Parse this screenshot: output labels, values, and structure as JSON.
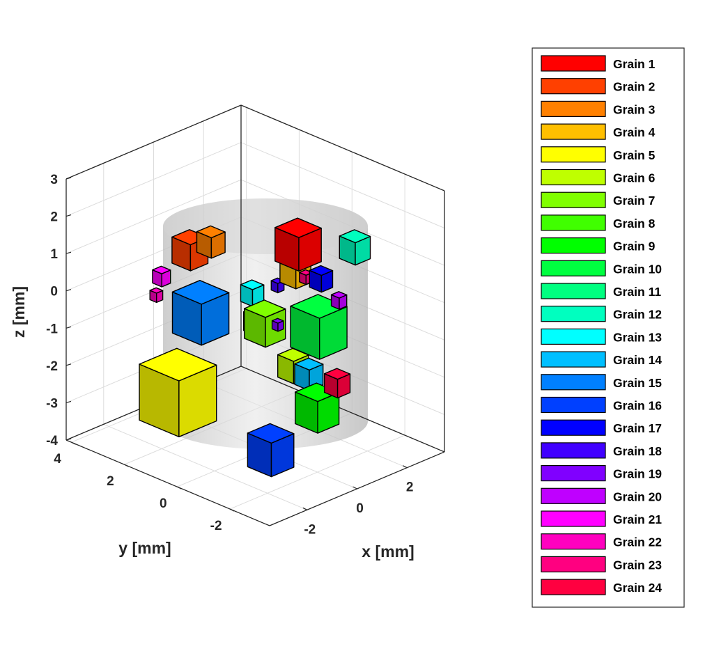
{
  "chart_data": {
    "type": "scatter3d",
    "title": "",
    "xlabel": "x [mm]",
    "ylabel": "y [mm]",
    "zlabel": "z [mm]",
    "xlim": [
      -3.5,
      3.5
    ],
    "ylim": [
      -3.5,
      4.2
    ],
    "zlim": [
      -4,
      3
    ],
    "xticks": [
      "-2",
      "0",
      "2"
    ],
    "yticks": [
      "4",
      "2",
      "0",
      "-2"
    ],
    "zticks": [
      "3",
      "2",
      "1",
      "0",
      "-1",
      "-2",
      "-3",
      "-4"
    ],
    "grid": true,
    "legend_position": "right",
    "sample": "grey cylindrical specimen",
    "grains": [
      {
        "name": "Grain 1",
        "color": "#ff0000",
        "x": 0.5,
        "y": -0.8,
        "z": 1.6,
        "size": 0.9
      },
      {
        "name": "Grain 2",
        "color": "#ff4000",
        "x": -1.4,
        "y": 1.5,
        "z": 1.3,
        "size": 0.7
      },
      {
        "name": "Grain 3",
        "color": "#ff8000",
        "x": -1.3,
        "y": 0.8,
        "z": 1.7,
        "size": 0.55
      },
      {
        "name": "Grain 4",
        "color": "#ffbf00",
        "x": 0.6,
        "y": -0.6,
        "z": 0.8,
        "size": 0.6
      },
      {
        "name": "Grain 5",
        "color": "#ffff00",
        "x": -2.2,
        "y": 1.2,
        "z": -2.2,
        "size": 1.5
      },
      {
        "name": "Grain 6",
        "color": "#bfff00",
        "x": 0.3,
        "y": -0.8,
        "z": -1.6,
        "size": 0.6
      },
      {
        "name": "Grain 7",
        "color": "#80ff00",
        "x": -0.2,
        "y": -0.2,
        "z": -0.5,
        "size": 0.8
      },
      {
        "name": "Grain 8",
        "color": "#40ff00",
        "x": 0.1,
        "y": 0.4,
        "z": -0.7,
        "size": 0.5
      },
      {
        "name": "Grain 9",
        "color": "#00ff00",
        "x": 0.2,
        "y": -1.8,
        "z": -2.4,
        "size": 0.85
      },
      {
        "name": "Grain 10",
        "color": "#00ff40",
        "x": 0.9,
        "y": -1.2,
        "z": -0.6,
        "size": 1.1
      },
      {
        "name": "Grain 11",
        "color": "#00ff80",
        "x": 1.0,
        "y": -0.9,
        "z": -0.4,
        "size": 0.35
      },
      {
        "name": "Grain 12",
        "color": "#00ffbf",
        "x": 1.5,
        "y": -2.0,
        "z": 1.6,
        "size": 0.6
      },
      {
        "name": "Grain 13",
        "color": "#00ffff",
        "x": -0.6,
        "y": -0.1,
        "z": 0.4,
        "size": 0.45
      },
      {
        "name": "Grain 14",
        "color": "#00bfff",
        "x": 0.4,
        "y": -1.3,
        "z": -1.7,
        "size": 0.55
      },
      {
        "name": "Grain 15",
        "color": "#0080ff",
        "x": -1.5,
        "y": 1.0,
        "z": -0.2,
        "size": 1.1
      },
      {
        "name": "Grain 16",
        "color": "#0040ff",
        "x": -0.6,
        "y": -0.8,
        "z": -3.6,
        "size": 0.9
      },
      {
        "name": "Grain 17",
        "color": "#0000ff",
        "x": 1.1,
        "y": -1.1,
        "z": 0.6,
        "size": 0.45
      },
      {
        "name": "Grain 18",
        "color": "#4000ff",
        "x": 0.1,
        "y": -0.4,
        "z": 0.5,
        "size": 0.25
      },
      {
        "name": "Grain 19",
        "color": "#8000ff",
        "x": 0.0,
        "y": -0.5,
        "z": -0.5,
        "size": 0.22
      },
      {
        "name": "Grain 20",
        "color": "#bf00ff",
        "x": 1.5,
        "y": -1.4,
        "z": 0.0,
        "size": 0.3
      },
      {
        "name": "Grain 21",
        "color": "#ff00ff",
        "x": -1.8,
        "y": 2.2,
        "z": 0.5,
        "size": 0.35
      },
      {
        "name": "Grain 22",
        "color": "#ff00bf",
        "x": -1.9,
        "y": 2.3,
        "z": 0.0,
        "size": 0.25
      },
      {
        "name": "Grain 23",
        "color": "#ff0080",
        "x": 0.7,
        "y": -0.9,
        "z": 0.7,
        "size": 0.25
      },
      {
        "name": "Grain 24",
        "color": "#ff0040",
        "x": 0.9,
        "y": -1.9,
        "z": -1.9,
        "size": 0.5
      }
    ]
  }
}
